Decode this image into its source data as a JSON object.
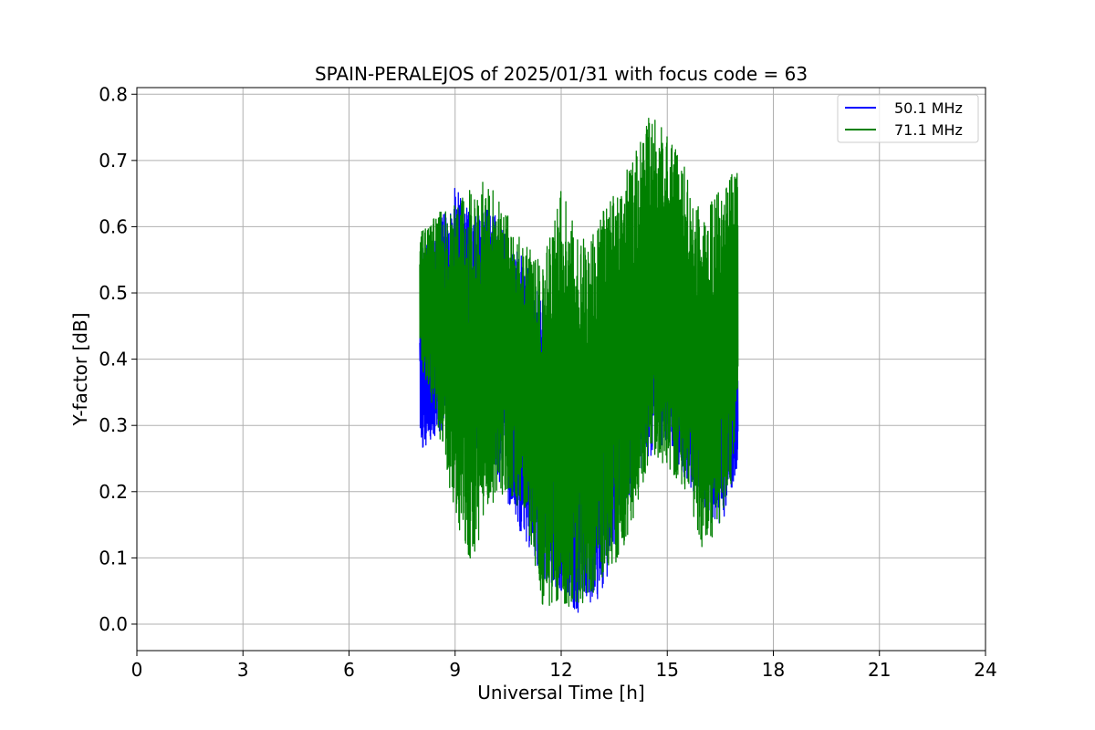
{
  "chart_data": {
    "type": "line",
    "title": "SPAIN-PERALEJOS of 2025/01/31 with focus code = 63",
    "xlabel": "Universal Time [h]",
    "ylabel": "Y-factor [dB]",
    "xlim": [
      0,
      24
    ],
    "ylim": [
      -0.04,
      0.81
    ],
    "xticks": [
      0,
      3,
      6,
      9,
      12,
      15,
      18,
      21,
      24
    ],
    "xtick_labels": [
      "0",
      "3",
      "6",
      "9",
      "12",
      "15",
      "18",
      "21",
      "24"
    ],
    "yticks": [
      0.0,
      0.1,
      0.2,
      0.3,
      0.4,
      0.5,
      0.6,
      0.7,
      0.8
    ],
    "ytick_labels": [
      "0.0",
      "0.1",
      "0.2",
      "0.3",
      "0.4",
      "0.5",
      "0.6",
      "0.7",
      "0.8"
    ],
    "grid": true,
    "legend_position": "top-right",
    "x_range_of_data": [
      8.0,
      17.0
    ],
    "series": [
      {
        "name": "50.1 MHz",
        "color": "#0000ff",
        "envelope": {
          "x": [
            8.0,
            8.5,
            9.0,
            9.5,
            10.0,
            10.5,
            11.0,
            11.5,
            12.0,
            12.5,
            13.0,
            13.5,
            14.0,
            14.5,
            15.0,
            15.5,
            16.0,
            16.5,
            17.0
          ],
          "high": [
            0.56,
            0.6,
            0.66,
            0.62,
            0.63,
            0.58,
            0.55,
            0.5,
            0.47,
            0.43,
            0.45,
            0.46,
            0.5,
            0.55,
            0.52,
            0.47,
            0.45,
            0.43,
            0.44
          ],
          "low": [
            0.26,
            0.28,
            0.3,
            0.27,
            0.25,
            0.18,
            0.12,
            0.07,
            0.05,
            0.01,
            0.03,
            0.1,
            0.2,
            0.25,
            0.28,
            0.22,
            0.18,
            0.14,
            0.24
          ]
        }
      },
      {
        "name": "71.1 MHz",
        "color": "#008000",
        "envelope": {
          "x": [
            8.0,
            8.5,
            9.0,
            9.5,
            10.0,
            10.5,
            11.0,
            11.5,
            12.0,
            12.5,
            13.0,
            13.5,
            14.0,
            14.5,
            15.0,
            15.5,
            16.0,
            16.5,
            17.0
          ],
          "high": [
            0.59,
            0.62,
            0.64,
            0.66,
            0.68,
            0.62,
            0.57,
            0.55,
            0.66,
            0.58,
            0.62,
            0.65,
            0.7,
            0.77,
            0.74,
            0.69,
            0.62,
            0.66,
            0.69
          ],
          "low": [
            0.4,
            0.3,
            0.16,
            0.08,
            0.18,
            0.2,
            0.16,
            0.02,
            0.03,
            0.02,
            0.05,
            0.08,
            0.15,
            0.25,
            0.24,
            0.2,
            0.11,
            0.15,
            0.25
          ]
        }
      }
    ]
  }
}
